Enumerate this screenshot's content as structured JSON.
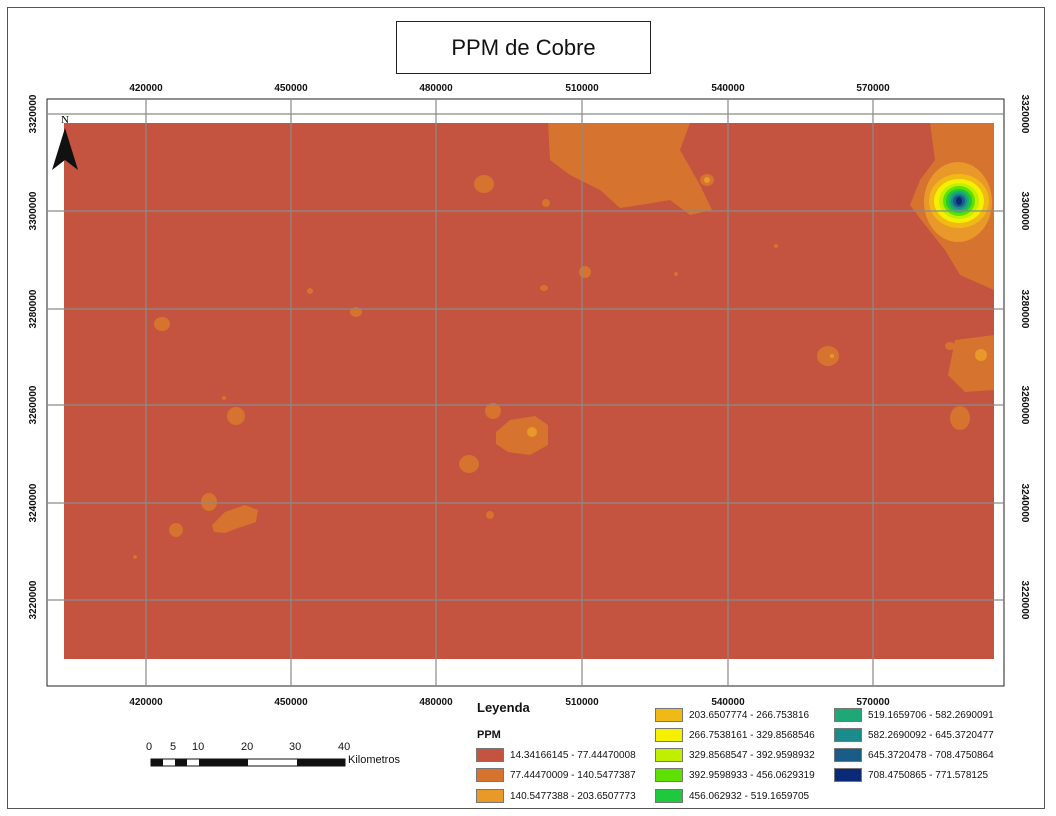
{
  "map": {
    "title": "PPM de Cobre",
    "north_label": "N",
    "x_ticks": [
      "420000",
      "450000",
      "480000",
      "510000",
      "540000",
      "570000"
    ],
    "y_ticks": [
      "3320000",
      "3300000",
      "3280000",
      "3260000",
      "3240000",
      "3220000"
    ],
    "colors": {
      "base": "#c4533f",
      "class2": "#d6732f",
      "class3": "#e8992a",
      "grid": "#8a8a8a"
    }
  },
  "legend": {
    "title": "Leyenda",
    "subtitle": "PPM",
    "items": [
      {
        "label": "14.34166145 - 77.44470008",
        "color": "#c4533f"
      },
      {
        "label": "77.44470009 - 140.5477387",
        "color": "#d6732f"
      },
      {
        "label": "140.5477388 - 203.6507773",
        "color": "#e8992a"
      },
      {
        "label": "203.6507774 - 266.753816",
        "color": "#f0b915"
      },
      {
        "label": "266.7538161 - 329.8568546",
        "color": "#f5f000"
      },
      {
        "label": "329.8568547 - 392.9598932",
        "color": "#c0f000"
      },
      {
        "label": "392.9598933 - 456.0629319",
        "color": "#5ee000"
      },
      {
        "label": "456.062932 - 519.1659705",
        "color": "#1fc83c"
      },
      {
        "label": "519.1659706 - 582.2690091",
        "color": "#1ea878"
      },
      {
        "label": "582.2690092 - 645.3720477",
        "color": "#1a8c8c"
      },
      {
        "label": "645.3720478 - 708.4750864",
        "color": "#1a5c88"
      },
      {
        "label": "708.4750865 - 771.578125",
        "color": "#0a2a78"
      }
    ]
  },
  "scale": {
    "labels": [
      "0",
      "5",
      "10",
      "20",
      "30",
      "40"
    ],
    "unit": "Kilometros"
  }
}
